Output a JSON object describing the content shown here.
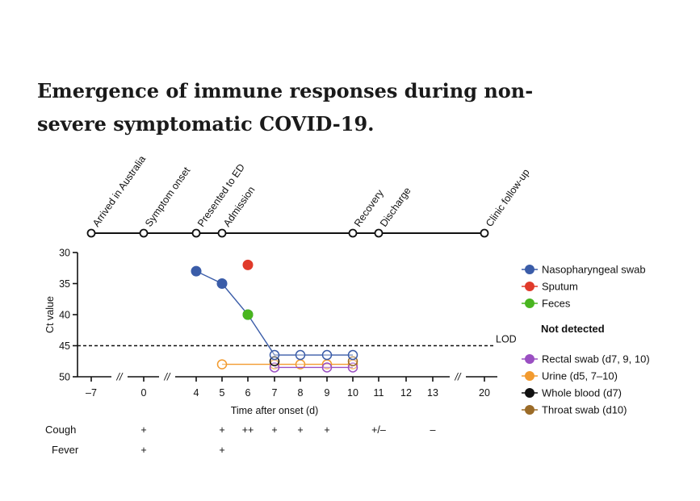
{
  "page": {
    "title": "Emergence of immune responses during non-severe symptomatic COVID-19."
  },
  "chart_data": {
    "type": "line",
    "xlabel": "Time after onset (d)",
    "ylabel": "Ct value",
    "ylim": [
      30,
      50
    ],
    "y_ticks": [
      30,
      35,
      40,
      45,
      50
    ],
    "x_ticks": [
      -7,
      0,
      4,
      5,
      6,
      7,
      8,
      9,
      10,
      11,
      12,
      13,
      20
    ],
    "x_breaks": [
      "//",
      "//",
      "//"
    ],
    "lod": {
      "value": 45,
      "label": "LOD"
    },
    "timeline": [
      {
        "day": -7,
        "label": "Arrived in Australia"
      },
      {
        "day": 0,
        "label": "Symptom onset"
      },
      {
        "day": 4,
        "label": "Presented to ED"
      },
      {
        "day": 5,
        "label": "Admission"
      },
      {
        "day": 10,
        "label": "Recovery"
      },
      {
        "day": 11,
        "label": "Discharge"
      },
      {
        "day": 20,
        "label": "Clinic follow-up"
      }
    ],
    "series": [
      {
        "name": "Nasopharyngeal swab",
        "color": "#3a5ca8",
        "points": [
          {
            "x": 4,
            "y": 33,
            "detected": true
          },
          {
            "x": 5,
            "y": 35,
            "detected": true
          },
          {
            "x": 6,
            "y": 40,
            "detected": true
          },
          {
            "x": 7,
            "y": 46.5,
            "detected": false
          },
          {
            "x": 8,
            "y": 46.5,
            "detected": false
          },
          {
            "x": 9,
            "y": 46.5,
            "detected": false
          },
          {
            "x": 10,
            "y": 46.5,
            "detected": false
          }
        ]
      },
      {
        "name": "Sputum",
        "color": "#e03a2a",
        "points": [
          {
            "x": 6,
            "y": 32,
            "detected": true
          }
        ]
      },
      {
        "name": "Feces",
        "color": "#49b51f",
        "points": [
          {
            "x": 6,
            "y": 40,
            "detected": true
          }
        ]
      },
      {
        "name": "Rectal swab (d7, 9, 10)",
        "color": "#9a4fc2",
        "points": [
          {
            "x": 7,
            "y": 48.5,
            "detected": false
          },
          {
            "x": 9,
            "y": 48.5,
            "detected": false
          },
          {
            "x": 10,
            "y": 48.5,
            "detected": false
          }
        ]
      },
      {
        "name": "Urine (d5, 7–10)",
        "color": "#f29a2e",
        "points": [
          {
            "x": 5,
            "y": 48,
            "detected": false
          },
          {
            "x": 7,
            "y": 48,
            "detected": false
          },
          {
            "x": 8,
            "y": 48,
            "detected": false
          },
          {
            "x": 9,
            "y": 48,
            "detected": false
          },
          {
            "x": 10,
            "y": 48,
            "detected": false
          }
        ]
      },
      {
        "name": "Whole blood (d7)",
        "color": "#111111",
        "points": [
          {
            "x": 7,
            "y": 47.5,
            "detected": false
          }
        ]
      },
      {
        "name": "Throat swab (d10)",
        "color": "#9b6b27",
        "points": [
          {
            "x": 10,
            "y": 47.5,
            "detected": false
          }
        ]
      }
    ],
    "legend_heading": "Not detected",
    "legend_detected": [
      "Nasopharyngeal swab",
      "Sputum",
      "Feces"
    ],
    "legend_not_detected": [
      "Rectal swab (d7, 9, 10)",
      "Urine (d5, 7–10)",
      "Whole blood (d7)",
      "Throat swab (d10)"
    ],
    "symptoms": [
      {
        "name": "Cough",
        "marks": [
          {
            "day": 0,
            "text": "+"
          },
          {
            "day": 5,
            "text": "+"
          },
          {
            "day": 6,
            "text": "++"
          },
          {
            "day": 7,
            "text": "+"
          },
          {
            "day": 8,
            "text": "+"
          },
          {
            "day": 9,
            "text": "+"
          },
          {
            "day": 11,
            "text": "+/–"
          },
          {
            "day": 13,
            "text": "–"
          }
        ]
      },
      {
        "name": "Fever",
        "marks": [
          {
            "day": 0,
            "text": "+"
          },
          {
            "day": 5,
            "text": "+"
          }
        ]
      }
    ]
  }
}
